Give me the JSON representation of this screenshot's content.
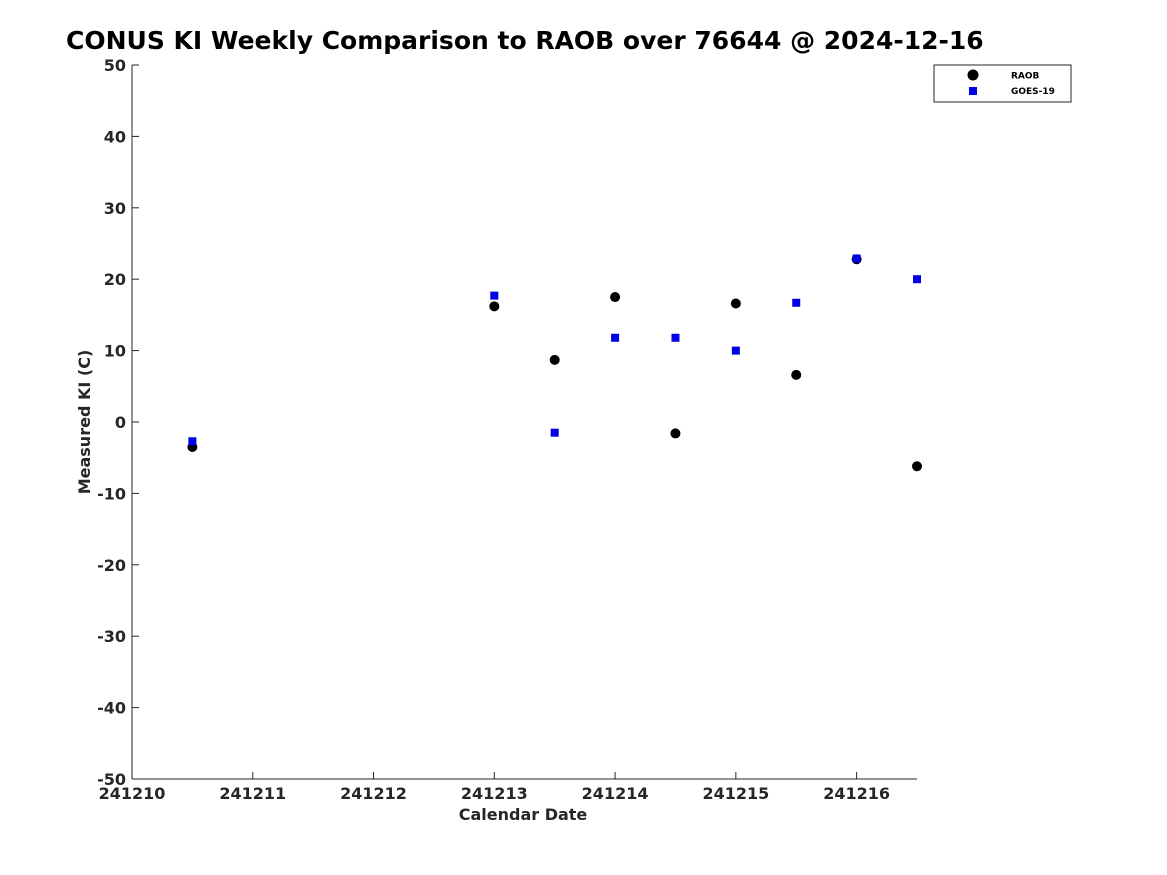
{
  "chart_data": {
    "type": "scatter",
    "title": "CONUS KI Weekly Comparison to RAOB over 76644 @ 2024-12-16",
    "xlabel": "Calendar Date",
    "ylabel": "Measured KI (C)",
    "x_ticks": [
      "241210",
      "241211",
      "241212",
      "241213",
      "241214",
      "241215",
      "241216"
    ],
    "y_ticks": [
      "50",
      "40",
      "30",
      "20",
      "10",
      "0",
      "-10",
      "-20",
      "-30",
      "-40",
      "-50"
    ],
    "xlim": [
      "241210",
      "241216.5"
    ],
    "ylim": [
      -50,
      50
    ],
    "grid": false,
    "legend_position": "top-right",
    "series": [
      {
        "name": "RAOB",
        "marker": "circle",
        "color": "#000000",
        "points": [
          {
            "x": "241210.5",
            "y": -3.5
          },
          {
            "x": "241213",
            "y": 16.2
          },
          {
            "x": "241213.5",
            "y": 8.7
          },
          {
            "x": "241214",
            "y": 17.5
          },
          {
            "x": "241214.5",
            "y": -1.6
          },
          {
            "x": "241215",
            "y": 16.6
          },
          {
            "x": "241215.5",
            "y": 6.6
          },
          {
            "x": "241216",
            "y": 22.8
          },
          {
            "x": "241216.5",
            "y": -6.2
          }
        ]
      },
      {
        "name": "GOES-19",
        "marker": "square",
        "color": "#0000e6",
        "points": [
          {
            "x": "241210.5",
            "y": -2.7
          },
          {
            "x": "241213",
            "y": 17.7
          },
          {
            "x": "241213.5",
            "y": -1.5
          },
          {
            "x": "241214",
            "y": 11.8
          },
          {
            "x": "241214.5",
            "y": 11.8
          },
          {
            "x": "241215",
            "y": 10.0
          },
          {
            "x": "241215.5",
            "y": 16.7
          },
          {
            "x": "241216",
            "y": 22.9
          },
          {
            "x": "241216.5",
            "y": 20.0
          }
        ]
      }
    ]
  }
}
